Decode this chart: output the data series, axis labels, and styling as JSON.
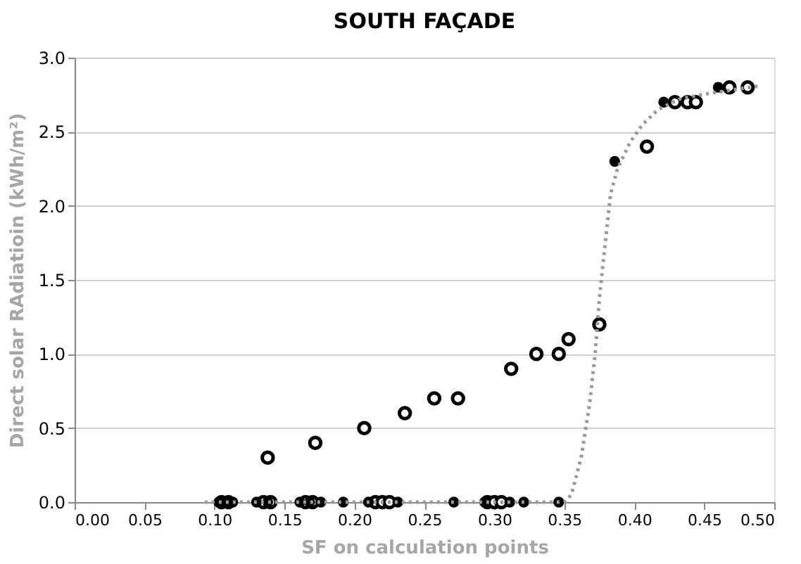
{
  "chart_data": {
    "type": "scatter",
    "title": "SOUTH FAÇADE",
    "xlabel": "SF  on calculation points",
    "ylabel": "Direct solar RAdiatioin (kWh/m²)",
    "xlim": [
      0,
      0.5
    ],
    "ylim": [
      0,
      3
    ],
    "xticks": [
      {
        "value": 0,
        "label": "0.00"
      },
      {
        "value": 0.05,
        "label": "0.05"
      },
      {
        "value": 0.1,
        "label": "0.10"
      },
      {
        "value": 0.15,
        "label": "0.15"
      },
      {
        "value": 0.2,
        "label": "0.20"
      },
      {
        "value": 0.25,
        "label": "0.25"
      },
      {
        "value": 0.3,
        "label": "0.30"
      },
      {
        "value": 0.35,
        "label": "0.35"
      },
      {
        "value": 0.4,
        "label": "0.40"
      },
      {
        "value": 0.45,
        "label": "0.45"
      },
      {
        "value": 0.5,
        "label": "0.50"
      }
    ],
    "yticks": [
      {
        "value": 0,
        "label": "0.0"
      },
      {
        "value": 0.5,
        "label": "0.5"
      },
      {
        "value": 1,
        "label": "1.0"
      },
      {
        "value": 1.5,
        "label": "1.5"
      },
      {
        "value": 2,
        "label": "2.0"
      },
      {
        "value": 2.5,
        "label": "2.5"
      },
      {
        "value": 3,
        "label": "3.0"
      }
    ],
    "grid": "y",
    "legend": false,
    "series": [
      {
        "marker": "circle",
        "color": "#000000",
        "x": [
          0.105,
          0.11,
          0.135,
          0.14,
          0.165,
          0.17,
          0.215,
          0.22,
          0.225,
          0.295,
          0.3,
          0.305,
          0.138,
          0.172,
          0.207,
          0.236,
          0.257,
          0.274,
          0.312,
          0.33,
          0.346,
          0.353,
          0.375,
          0.409,
          0.429,
          0.438,
          0.444,
          0.468,
          0.481
        ],
        "values": [
          0,
          0,
          0,
          0,
          0,
          0,
          0,
          0,
          0,
          0,
          0,
          0,
          0.3,
          0.4,
          0.5,
          0.6,
          0.7,
          0.7,
          0.9,
          1.0,
          1.0,
          1.1,
          1.2,
          2.4,
          2.7,
          2.7,
          2.7,
          2.8,
          2.8
        ]
      },
      {
        "marker": "circle",
        "color": "#000000",
        "x": [
          0.103,
          0.108,
          0.113,
          0.13,
          0.138,
          0.161,
          0.168,
          0.176,
          0.192,
          0.21,
          0.231,
          0.271,
          0.293,
          0.311,
          0.321,
          0.346,
          0.386,
          0.421,
          0.46
        ],
        "values": [
          0,
          0,
          0,
          0,
          0,
          0,
          0,
          0,
          0,
          0,
          0,
          0,
          0,
          0,
          0,
          0,
          2.3,
          2.7,
          2.8
        ]
      },
      {
        "type": "line",
        "line_style": "dotted",
        "marker": "none",
        "color": "#999999",
        "x": [
          0.093,
          0.2,
          0.3,
          0.35,
          0.355,
          0.362,
          0.368,
          0.372,
          0.375,
          0.379,
          0.383,
          0.388,
          0.397,
          0.406,
          0.417,
          0.432,
          0.454,
          0.49
        ],
        "values": [
          0,
          0,
          0,
          0,
          0.05,
          0.3,
          0.66,
          1.0,
          1.37,
          1.73,
          2.08,
          2.25,
          2.43,
          2.55,
          2.65,
          2.72,
          2.76,
          2.81
        ]
      }
    ]
  }
}
